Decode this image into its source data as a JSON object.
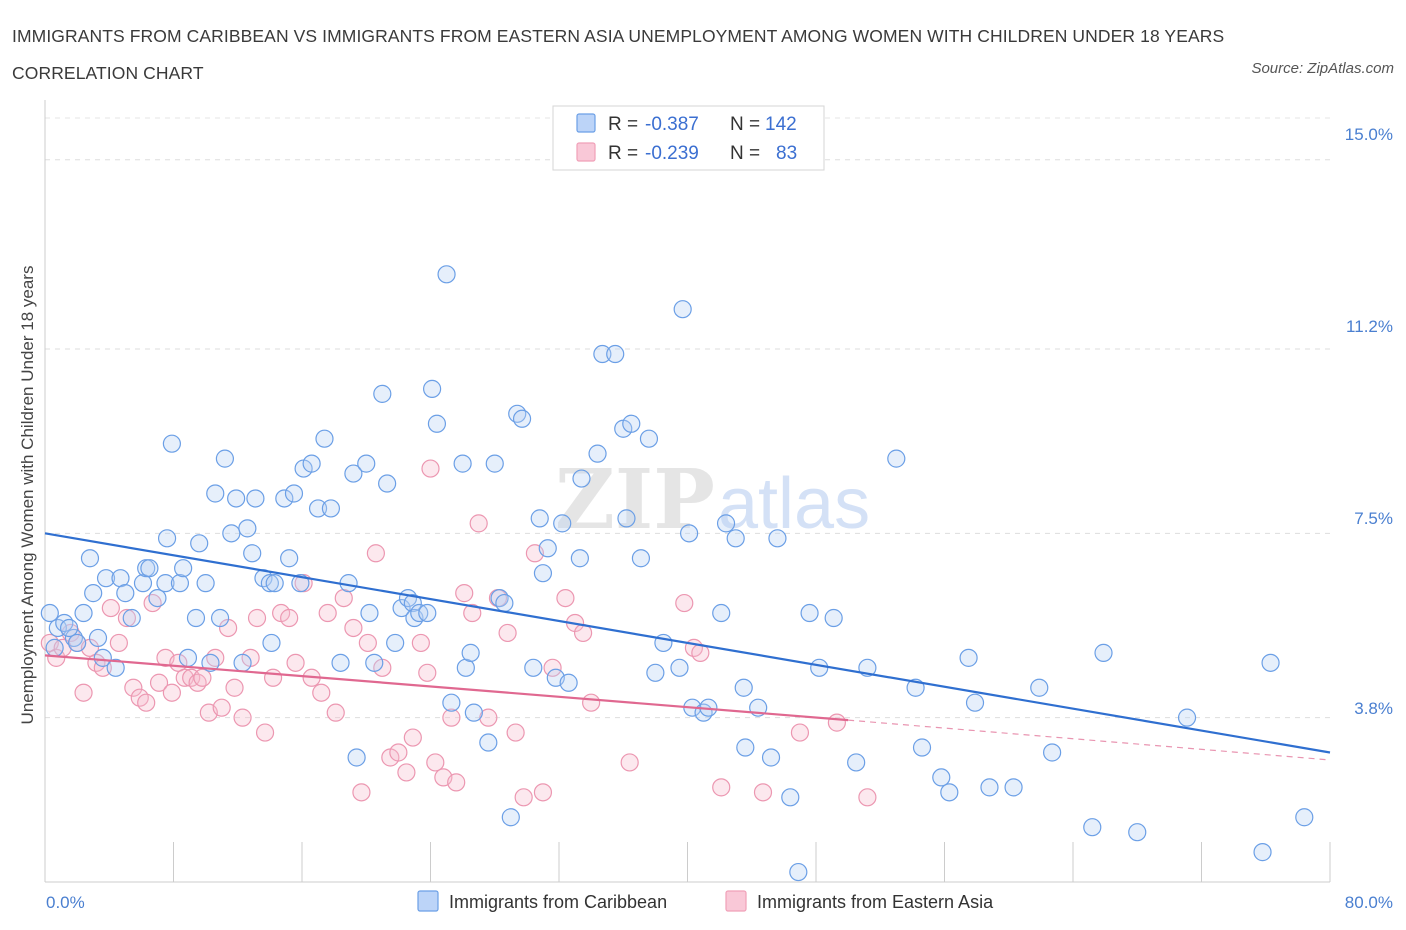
{
  "title": "IMMIGRANTS FROM CARIBBEAN VS IMMIGRANTS FROM EASTERN ASIA UNEMPLOYMENT AMONG WOMEN WITH CHILDREN UNDER 18 YEARS CORRELATION CHART",
  "source": "Source: ZipAtlas.com",
  "watermark": {
    "zip": "ZIP",
    "atlas": "atlas"
  },
  "legend": {
    "rows": [
      {
        "r_label": "R =",
        "r_value": "-0.387",
        "n_label": "N =",
        "n_value": "142"
      },
      {
        "r_label": "R =",
        "r_value": "-0.239",
        "n_label": "N =",
        "n_value": "83"
      }
    ]
  },
  "chart_data": {
    "type": "scatter",
    "title": "IMMIGRANTS FROM CARIBBEAN VS IMMIGRANTS FROM EASTERN ASIA UNEMPLOYMENT AMONG WOMEN WITH CHILDREN UNDER 18 YEARS CORRELATION CHART",
    "xlabel": "",
    "ylabel": "Unemployment Among Women with Children Under 18 years",
    "xlim": [
      0,
      80
    ],
    "ylim": [
      0.5,
      16.2
    ],
    "x_tick_labels": [
      "0.0%",
      "80.0%"
    ],
    "y_ticks": [
      3.8,
      7.5,
      11.2,
      15.0
    ],
    "y_tick_labels": [
      "3.8%",
      "7.5%",
      "11.2%",
      "15.0%"
    ],
    "grid": true,
    "legend_position": "top-center",
    "colors": {
      "caribbean": "#6b9fe6",
      "eastern_asia": "#f0a0b8",
      "caribbean_line": "#2f6fd0",
      "eastern_asia_line": "#e06890"
    },
    "series": [
      {
        "name": "Immigrants from Caribbean",
        "R": -0.387,
        "N": 142,
        "trend": {
          "x": [
            0,
            80
          ],
          "y": [
            7.5,
            3.1
          ]
        },
        "points": [
          [
            0.3,
            5.9
          ],
          [
            0.8,
            5.6
          ],
          [
            1.2,
            5.7
          ],
          [
            1.8,
            5.4
          ],
          [
            2.4,
            5.9
          ],
          [
            2.8,
            7.0
          ],
          [
            3.0,
            6.3
          ],
          [
            3.6,
            5.0
          ],
          [
            3.8,
            6.6
          ],
          [
            4.4,
            4.8
          ],
          [
            4.7,
            6.6
          ],
          [
            5.0,
            6.3
          ],
          [
            5.4,
            5.8
          ],
          [
            6.1,
            6.5
          ],
          [
            6.3,
            6.8
          ],
          [
            6.5,
            6.8
          ],
          [
            7.0,
            6.2
          ],
          [
            7.5,
            6.5
          ],
          [
            7.6,
            7.4
          ],
          [
            7.9,
            9.3
          ],
          [
            8.4,
            6.5
          ],
          [
            8.6,
            6.8
          ],
          [
            8.9,
            5.0
          ],
          [
            9.4,
            5.8
          ],
          [
            9.6,
            7.3
          ],
          [
            10.0,
            6.5
          ],
          [
            10.3,
            4.9
          ],
          [
            10.6,
            8.3
          ],
          [
            10.9,
            5.8
          ],
          [
            11.2,
            9.0
          ],
          [
            11.6,
            7.5
          ],
          [
            11.9,
            8.2
          ],
          [
            12.3,
            4.9
          ],
          [
            12.6,
            7.6
          ],
          [
            12.9,
            7.1
          ],
          [
            13.1,
            8.2
          ],
          [
            13.6,
            6.6
          ],
          [
            14.0,
            6.5
          ],
          [
            14.1,
            5.3
          ],
          [
            14.3,
            6.5
          ],
          [
            14.9,
            8.2
          ],
          [
            15.2,
            7.0
          ],
          [
            15.5,
            8.3
          ],
          [
            15.9,
            6.5
          ],
          [
            16.1,
            8.8
          ],
          [
            16.6,
            8.9
          ],
          [
            17.0,
            8.0
          ],
          [
            17.4,
            9.4
          ],
          [
            17.8,
            8.0
          ],
          [
            18.4,
            4.9
          ],
          [
            18.9,
            6.5
          ],
          [
            19.2,
            8.7
          ],
          [
            19.4,
            3.0
          ],
          [
            20.0,
            8.9
          ],
          [
            20.2,
            5.9
          ],
          [
            20.5,
            4.9
          ],
          [
            21.0,
            10.3
          ],
          [
            21.3,
            8.5
          ],
          [
            21.8,
            5.3
          ],
          [
            22.2,
            6.0
          ],
          [
            22.6,
            6.2
          ],
          [
            22.9,
            6.1
          ],
          [
            23.0,
            5.8
          ],
          [
            23.3,
            5.9
          ],
          [
            23.8,
            5.9
          ],
          [
            24.1,
            10.4
          ],
          [
            24.4,
            9.7
          ],
          [
            25.0,
            12.7
          ],
          [
            25.3,
            4.1
          ],
          [
            26.0,
            8.9
          ],
          [
            26.2,
            4.8
          ],
          [
            26.5,
            5.1
          ],
          [
            26.7,
            3.9
          ],
          [
            27.6,
            3.3
          ],
          [
            28.0,
            8.9
          ],
          [
            28.3,
            6.2
          ],
          [
            28.6,
            6.1
          ],
          [
            29.0,
            1.8
          ],
          [
            29.4,
            9.9
          ],
          [
            29.7,
            9.8
          ],
          [
            30.4,
            4.8
          ],
          [
            30.8,
            7.8
          ],
          [
            31.0,
            6.7
          ],
          [
            31.3,
            7.2
          ],
          [
            31.8,
            4.6
          ],
          [
            32.2,
            7.7
          ],
          [
            32.6,
            4.5
          ],
          [
            33.3,
            7.0
          ],
          [
            33.4,
            8.6
          ],
          [
            34.4,
            9.1
          ],
          [
            34.7,
            11.1
          ],
          [
            35.5,
            11.1
          ],
          [
            36.0,
            9.6
          ],
          [
            36.2,
            7.8
          ],
          [
            36.5,
            9.7
          ],
          [
            37.1,
            7.0
          ],
          [
            37.6,
            9.4
          ],
          [
            38.0,
            4.7
          ],
          [
            38.5,
            5.3
          ],
          [
            39.5,
            4.8
          ],
          [
            39.7,
            12.0
          ],
          [
            40.1,
            7.5
          ],
          [
            40.3,
            4.0
          ],
          [
            41.0,
            3.9
          ],
          [
            41.3,
            4.0
          ],
          [
            42.1,
            5.9
          ],
          [
            42.4,
            7.7
          ],
          [
            43.0,
            7.4
          ],
          [
            43.5,
            4.4
          ],
          [
            43.6,
            3.2
          ],
          [
            44.4,
            4.0
          ],
          [
            45.2,
            3.0
          ],
          [
            45.6,
            7.4
          ],
          [
            46.4,
            2.2
          ],
          [
            46.9,
            0.7
          ],
          [
            47.6,
            5.9
          ],
          [
            48.2,
            4.8
          ],
          [
            49.1,
            5.8
          ],
          [
            50.5,
            2.9
          ],
          [
            51.2,
            4.8
          ],
          [
            53.0,
            9.0
          ],
          [
            54.2,
            4.4
          ],
          [
            54.6,
            3.2
          ],
          [
            55.8,
            2.6
          ],
          [
            56.3,
            2.3
          ],
          [
            57.5,
            5.0
          ],
          [
            57.9,
            4.1
          ],
          [
            58.8,
            2.4
          ],
          [
            60.3,
            2.4
          ],
          [
            61.9,
            4.4
          ],
          [
            62.7,
            3.1
          ],
          [
            65.2,
            1.6
          ],
          [
            65.9,
            5.1
          ],
          [
            68.0,
            1.5
          ],
          [
            71.1,
            3.8
          ],
          [
            75.8,
            1.1
          ],
          [
            76.3,
            4.9
          ],
          [
            78.4,
            1.8
          ],
          [
            0.6,
            5.2
          ],
          [
            2.0,
            5.3
          ],
          [
            1.5,
            5.6
          ],
          [
            3.3,
            5.4
          ]
        ]
      },
      {
        "name": "Immigrants from Eastern Asia",
        "R": -0.239,
        "N": 83,
        "trend": {
          "x": [
            0,
            50
          ],
          "y": [
            5.05,
            3.75
          ]
        },
        "trend_dashed": {
          "x": [
            50,
            80
          ],
          "y": [
            3.75,
            2.95
          ]
        },
        "points": [
          [
            0.3,
            5.3
          ],
          [
            0.7,
            5.0
          ],
          [
            1.1,
            5.2
          ],
          [
            1.6,
            5.5
          ],
          [
            2.0,
            5.3
          ],
          [
            2.4,
            4.3
          ],
          [
            2.8,
            5.2
          ],
          [
            3.2,
            4.9
          ],
          [
            3.6,
            4.8
          ],
          [
            4.1,
            6.0
          ],
          [
            4.6,
            5.3
          ],
          [
            5.1,
            5.8
          ],
          [
            5.5,
            4.4
          ],
          [
            5.9,
            4.2
          ],
          [
            6.3,
            4.1
          ],
          [
            6.7,
            6.1
          ],
          [
            7.1,
            4.5
          ],
          [
            7.5,
            5.0
          ],
          [
            7.9,
            4.3
          ],
          [
            8.3,
            4.9
          ],
          [
            8.7,
            4.6
          ],
          [
            9.1,
            4.6
          ],
          [
            9.5,
            4.5
          ],
          [
            9.8,
            4.6
          ],
          [
            10.2,
            3.9
          ],
          [
            10.6,
            5.0
          ],
          [
            11.0,
            4.0
          ],
          [
            11.4,
            5.6
          ],
          [
            11.8,
            4.4
          ],
          [
            12.3,
            3.8
          ],
          [
            12.8,
            5.0
          ],
          [
            13.2,
            5.8
          ],
          [
            13.7,
            3.5
          ],
          [
            14.2,
            4.6
          ],
          [
            14.7,
            5.9
          ],
          [
            15.2,
            5.8
          ],
          [
            15.6,
            4.9
          ],
          [
            16.1,
            6.5
          ],
          [
            16.6,
            4.6
          ],
          [
            17.2,
            4.3
          ],
          [
            17.6,
            5.9
          ],
          [
            18.1,
            3.9
          ],
          [
            18.6,
            6.2
          ],
          [
            19.2,
            5.6
          ],
          [
            19.7,
            2.3
          ],
          [
            20.1,
            5.3
          ],
          [
            20.6,
            7.1
          ],
          [
            21.0,
            4.8
          ],
          [
            21.5,
            3.0
          ],
          [
            22.0,
            3.1
          ],
          [
            22.5,
            2.7
          ],
          [
            22.9,
            3.4
          ],
          [
            23.4,
            5.3
          ],
          [
            23.8,
            4.7
          ],
          [
            24.0,
            8.8
          ],
          [
            24.3,
            2.9
          ],
          [
            24.8,
            2.6
          ],
          [
            25.3,
            3.8
          ],
          [
            25.6,
            2.5
          ],
          [
            26.1,
            6.3
          ],
          [
            26.6,
            5.9
          ],
          [
            27.0,
            7.7
          ],
          [
            27.6,
            3.8
          ],
          [
            28.2,
            6.2
          ],
          [
            28.8,
            5.5
          ],
          [
            29.3,
            3.5
          ],
          [
            29.8,
            2.2
          ],
          [
            30.5,
            7.1
          ],
          [
            31.0,
            2.3
          ],
          [
            31.6,
            4.8
          ],
          [
            32.4,
            6.2
          ],
          [
            33.0,
            5.7
          ],
          [
            33.5,
            5.5
          ],
          [
            34.0,
            4.1
          ],
          [
            36.4,
            2.9
          ],
          [
            39.8,
            6.1
          ],
          [
            40.4,
            5.2
          ],
          [
            40.8,
            5.1
          ],
          [
            42.1,
            2.4
          ],
          [
            44.7,
            2.3
          ],
          [
            47.0,
            3.5
          ],
          [
            49.3,
            3.7
          ],
          [
            51.2,
            2.2
          ]
        ]
      }
    ]
  },
  "bottom_legend": {
    "items": [
      "Immigrants from Caribbean",
      "Immigrants from Eastern Asia"
    ]
  }
}
